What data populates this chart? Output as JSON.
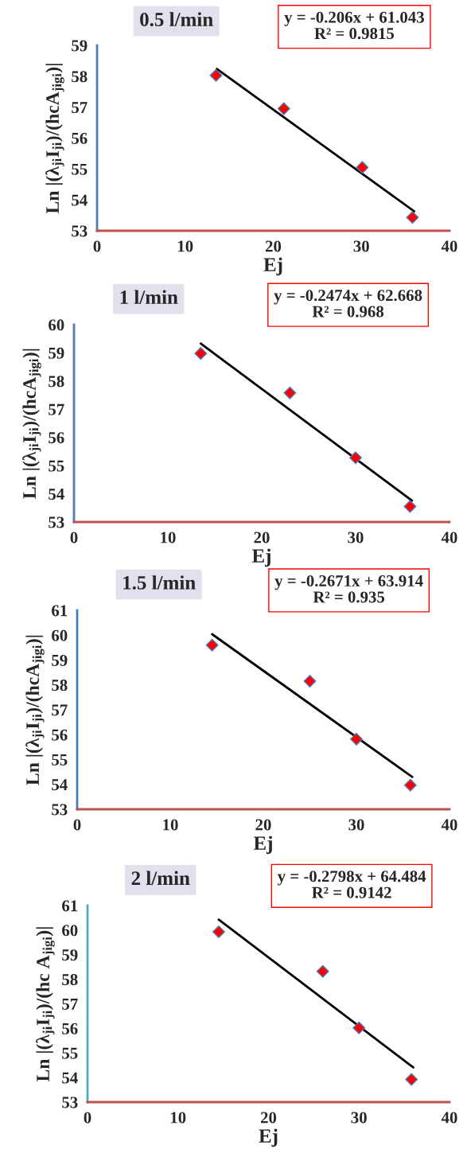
{
  "chart_data": [
    {
      "type": "scatter",
      "title": "0.5 l/min",
      "xlabel": "Ej",
      "ylabel": "Ln |(λ$_{ji}$I$_{ji}$)/(hcA$_{jigi}$)|",
      "xlim": [
        0,
        40
      ],
      "xticks": [
        0,
        10,
        20,
        30,
        40
      ],
      "ylim": [
        53,
        59
      ],
      "yticks": [
        53,
        54,
        55,
        56,
        57,
        58,
        59
      ],
      "series": [
        {
          "color": "#ff0000",
          "marker": "diamond",
          "x": [
            13.5,
            21.2,
            30.1,
            35.8
          ],
          "values": [
            58.03,
            56.95,
            55.05,
            53.43
          ]
        },
        {
          "type": "line",
          "color": "#000000",
          "x": [
            13.6,
            36
          ],
          "values": [
            58.24,
            53.63
          ]
        }
      ],
      "annotations": [
        "y = -0.206x + 61.043\nR² = 0.9815"
      ]
    },
    {
      "type": "scatter",
      "title": "1 l/min",
      "xlabel": "Ej",
      "ylabel": "Ln |(λ$_{ji}$I$_{ji}$)/(hcA$_{jigi}$)|",
      "xlim": [
        0,
        40
      ],
      "xticks": [
        0,
        10,
        20,
        30,
        40
      ],
      "ylim": [
        53,
        60
      ],
      "yticks": [
        53,
        54,
        55,
        56,
        57,
        58,
        59,
        60
      ],
      "series": [
        {
          "color": "#ff0000",
          "marker": "diamond",
          "x": [
            13.5,
            23,
            30,
            35.8
          ],
          "values": [
            58.98,
            57.58,
            55.28,
            53.55
          ]
        },
        {
          "type": "line",
          "color": "#000000",
          "x": [
            13.5,
            36
          ],
          "values": [
            59.33,
            53.76
          ]
        }
      ],
      "annotations": [
        "y = -0.2474x + 62.668\nR² = 0.968"
      ]
    },
    {
      "type": "scatter",
      "title": "1.5 l/min",
      "xlabel": "Ej",
      "ylabel": "Ln |(λ$_{ji}$I$_{ji}$)/(hcA$_{jigi}$)|",
      "xlim": [
        0,
        40
      ],
      "xticks": [
        0,
        10,
        20,
        30,
        40
      ],
      "ylim": [
        53,
        61
      ],
      "yticks": [
        53,
        54,
        55,
        56,
        57,
        58,
        59,
        60,
        61
      ],
      "series": [
        {
          "color": "#ff0000",
          "marker": "diamond",
          "x": [
            14.5,
            25,
            30,
            35.8
          ],
          "values": [
            59.6,
            58.15,
            55.82,
            53.97
          ]
        },
        {
          "type": "line",
          "color": "#000000",
          "x": [
            14.5,
            36
          ],
          "values": [
            60.04,
            54.3
          ]
        }
      ],
      "annotations": [
        "y = -0.2671x + 63.914\nR² = 0.935"
      ]
    },
    {
      "type": "scatter",
      "title": "2 l/min",
      "xlabel": "Ej",
      "ylabel": "Ln |(λ$_{ji}$I$_{ji}$)/(hc A$_{jigi}$)|",
      "xlim": [
        0,
        40
      ],
      "xticks": [
        0,
        10,
        20,
        30,
        40
      ],
      "ylim": [
        53,
        61
      ],
      "yticks": [
        53,
        54,
        55,
        56,
        57,
        58,
        59,
        60,
        61
      ],
      "series": [
        {
          "color": "#ff0000",
          "marker": "diamond",
          "x": [
            14.5,
            26,
            30,
            35.8
          ],
          "values": [
            59.93,
            58.32,
            56.02,
            53.92
          ]
        },
        {
          "type": "line",
          "color": "#000000",
          "x": [
            14.5,
            36
          ],
          "values": [
            60.43,
            54.41
          ]
        }
      ],
      "annotations": [
        "y = -0.2798x + 64.484\nR² = 0.9142"
      ]
    }
  ]
}
